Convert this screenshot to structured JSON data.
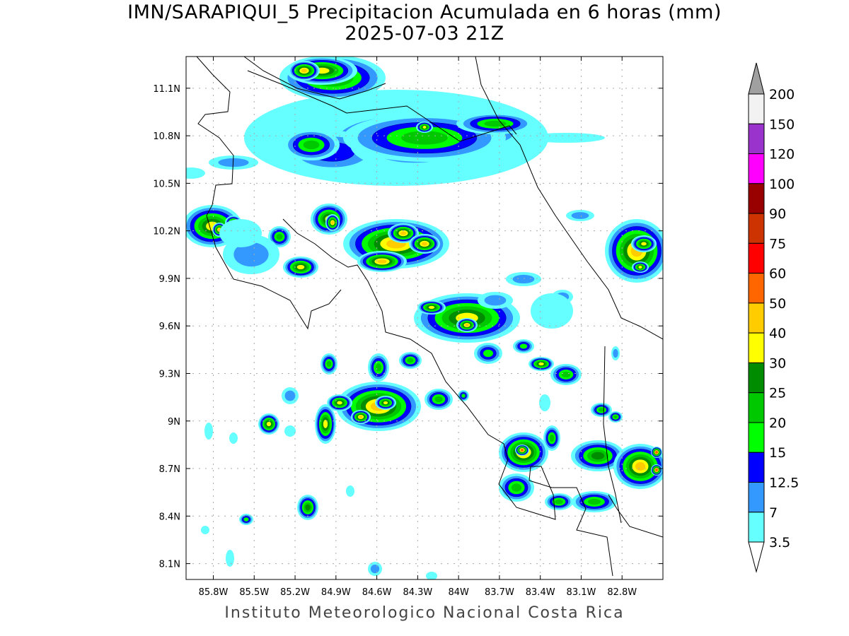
{
  "title": {
    "line1": "IMN/SARAPIQUI_5 Precipitacion Acumulada en 6 horas (mm)",
    "line2": "2025-07-03 21Z"
  },
  "map": {
    "region": "Costa Rica",
    "lat_range": [
      8.0,
      11.3
    ],
    "lon_range": [
      -86.0,
      -82.5
    ],
    "lat_ticks": [
      "11.1N",
      "10.8N",
      "10.5N",
      "10.2N",
      "9.9N",
      "9.6N",
      "9.3N",
      "9N",
      "8.7N",
      "8.4N",
      "8.1N"
    ],
    "lon_ticks": [
      "85.8W",
      "85.5W",
      "85.2W",
      "84.9W",
      "84.6W",
      "84.3W",
      "84W",
      "83.7W",
      "83.4W",
      "83.1W",
      "82.8W"
    ],
    "grid": true,
    "variable": "6-hour accumulated precipitation (mm)"
  },
  "colorbar": {
    "labels": [
      "200",
      "150",
      "120",
      "100",
      "90",
      "75",
      "60",
      "50",
      "40",
      "30",
      "25",
      "20",
      "15",
      "12.5",
      "7",
      "3.5"
    ],
    "colors": [
      "#f2f2f2",
      "#9933cc",
      "#ff00ff",
      "#990000",
      "#cc3300",
      "#ff0000",
      "#ff6600",
      "#ffcc00",
      "#ffff00",
      "#008c00",
      "#00c800",
      "#00ff00",
      "#0000ff",
      "#3399ff",
      "#66ffff"
    ],
    "over_color": "#a0a0a0",
    "under_color": "#ffffff"
  },
  "footer": "Instituto Meteorologico Nacional Costa Rica"
}
